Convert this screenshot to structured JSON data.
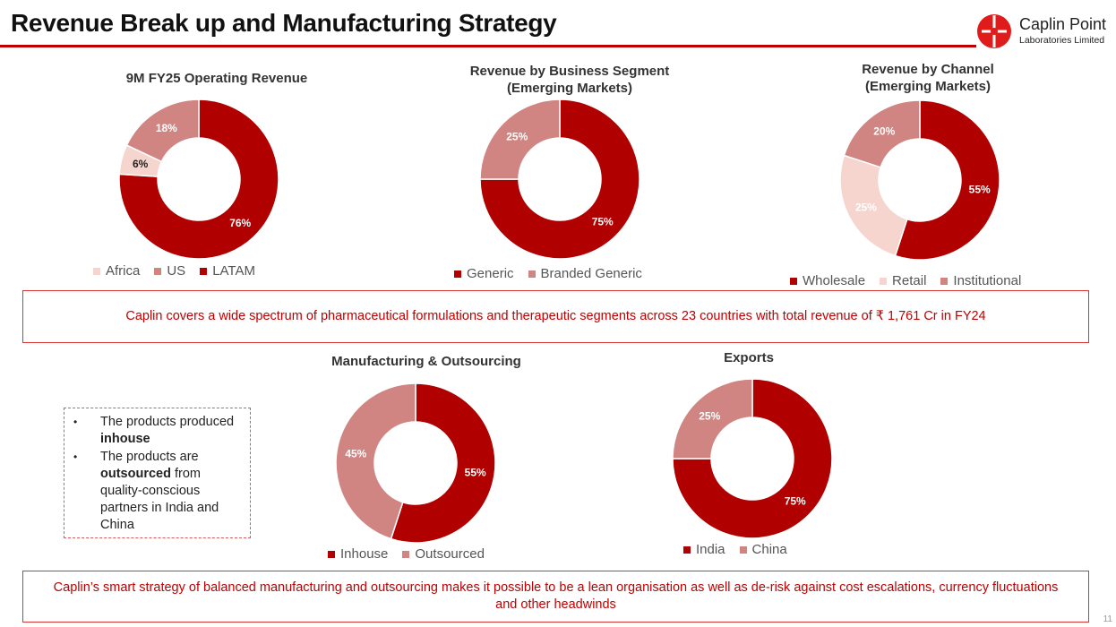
{
  "header": {
    "title": "Revenue Break up and Manufacturing Strategy",
    "logo_name": "Caplin Point",
    "logo_sub": "Laboratories Limited",
    "accent": "#c00000"
  },
  "chart_data": [
    {
      "id": "operating",
      "type": "pie",
      "title": "9M FY25 Operating Revenue",
      "categories": [
        "Africa",
        "US",
        "LATAM"
      ],
      "values": [
        6,
        18,
        76
      ],
      "labels": [
        "6%",
        "18%",
        "76%"
      ],
      "colors": [
        "#f6d5cf",
        "#d08582",
        "#b00000"
      ],
      "label_colors": [
        "#222222",
        "#ffffff",
        "#ffffff"
      ],
      "start_category": "LATAM",
      "donut": true
    },
    {
      "id": "segment",
      "type": "pie",
      "title": "Revenue by Business Segment",
      "subtitle": "(Emerging Markets)",
      "categories": [
        "Generic",
        "Branded Generic"
      ],
      "values": [
        75,
        25
      ],
      "labels": [
        "75%",
        "25%"
      ],
      "colors": [
        "#b00000",
        "#d08582"
      ],
      "label_colors": [
        "#ffffff",
        "#ffffff"
      ],
      "donut": true
    },
    {
      "id": "channel",
      "type": "pie",
      "title": "Revenue by Channel",
      "subtitle": "(Emerging Markets)",
      "categories": [
        "Wholesale",
        "Retail",
        "Institutional"
      ],
      "values": [
        55,
        25,
        20
      ],
      "labels": [
        "55%",
        "25%",
        "20%"
      ],
      "colors": [
        "#b00000",
        "#f6d5cf",
        "#d08582"
      ],
      "label_colors": [
        "#ffffff",
        "#ffffff",
        "#ffffff"
      ],
      "donut": true
    },
    {
      "id": "manufacturing",
      "type": "pie",
      "title": "Manufacturing & Outsourcing",
      "categories": [
        "Inhouse",
        "Outsourced"
      ],
      "values": [
        55,
        45
      ],
      "labels": [
        "55%",
        "45%"
      ],
      "colors": [
        "#b00000",
        "#d08582"
      ],
      "label_colors": [
        "#ffffff",
        "#ffffff"
      ],
      "donut": true
    },
    {
      "id": "exports",
      "type": "pie",
      "title": "Exports",
      "categories": [
        "India",
        "China"
      ],
      "values": [
        75,
        25
      ],
      "labels": [
        "75%",
        "25%"
      ],
      "colors": [
        "#b00000",
        "#d08582"
      ],
      "label_colors": [
        "#ffffff",
        "#ffffff"
      ],
      "donut": true
    }
  ],
  "callouts": {
    "spectrum": "Caplin covers a wide spectrum of pharmaceutical formulations and therapeutic segments across 23 countries with total revenue of ₹ 1,761 Cr in FY24",
    "strategy": "Caplin’s smart strategy of balanced manufacturing and outsourcing makes it possible to be a lean organisation as well as de-risk against cost escalations, currency fluctuations and other headwinds"
  },
  "notes": {
    "item1": {
      "pre": "The products produced ",
      "bold": "inhouse",
      "post": ""
    },
    "item2": {
      "pre": "The products are ",
      "bold": "outsourced",
      "post": " from quality-conscious partners in India and China"
    },
    "bullet": "•"
  },
  "page_number": "11"
}
